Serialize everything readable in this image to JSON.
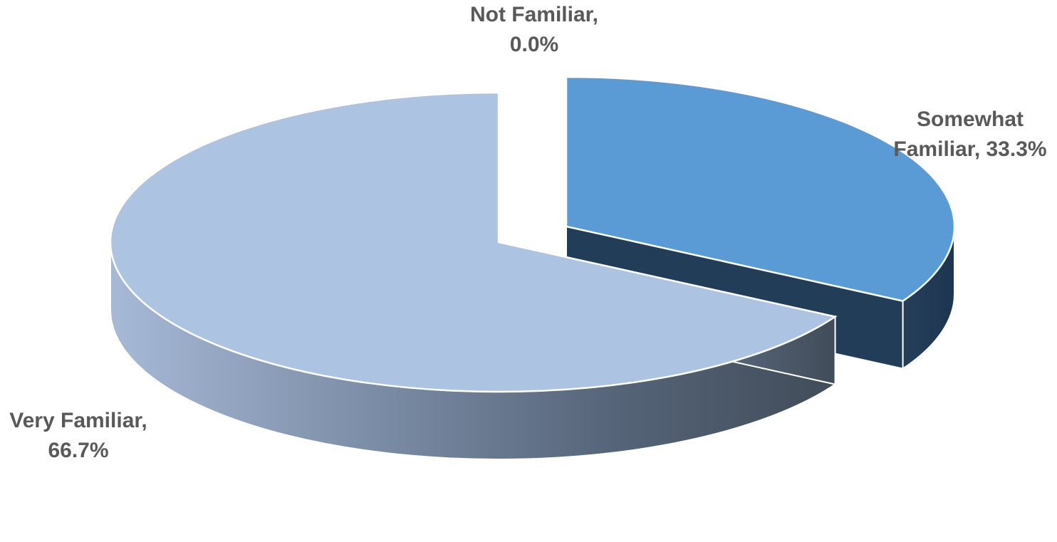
{
  "chart_data": {
    "type": "pie",
    "style": "3d-exploded",
    "categories": [
      "Very Familiar",
      "Somewhat Familiar",
      "Not Familiar"
    ],
    "values": [
      66.7,
      33.3,
      0.0
    ],
    "unit": "%",
    "data_labels": [
      {
        "category": "Very Familiar",
        "lines": [
          "Very Familiar,",
          "66.7%"
        ]
      },
      {
        "category": "Somewhat Familiar",
        "lines": [
          "Somewhat",
          "Familiar, 33.3%"
        ]
      },
      {
        "category": "Not Familiar",
        "lines": [
          "Not Familiar,",
          "0.0%"
        ]
      }
    ],
    "colors": {
      "Very Familiar": "#adc3e2",
      "Somewhat Familiar": "#5b9bd5",
      "Not Familiar": "#4472c4"
    },
    "legend": "none"
  }
}
